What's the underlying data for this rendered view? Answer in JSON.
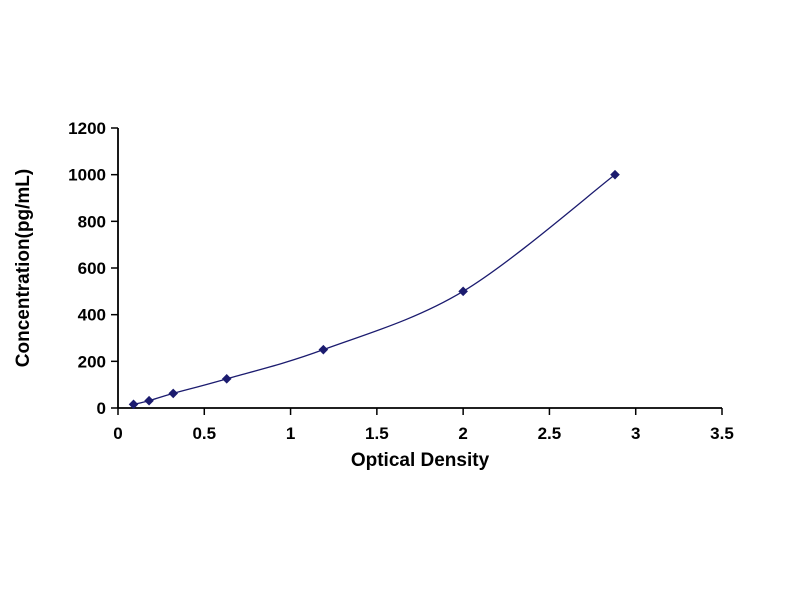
{
  "page": {
    "background": "#ffffff"
  },
  "chart_data": {
    "type": "line",
    "title": "",
    "xlabel": "Optical Density",
    "ylabel": "Concentration(pg/mL)",
    "x": [
      0.09,
      0.18,
      0.32,
      0.63,
      1.19,
      2.0,
      2.88
    ],
    "y": [
      15.6,
      31.2,
      62.5,
      125,
      250,
      500,
      1000
    ],
    "xlim": [
      0,
      3.5
    ],
    "ylim": [
      0,
      1200
    ],
    "xticks": {
      "values": [
        0,
        0.5,
        1,
        1.5,
        2,
        2.5,
        3,
        3.5
      ],
      "labels": [
        "0",
        "0.5",
        "1",
        "1.5",
        "2",
        "2.5",
        "3",
        "3.5"
      ]
    },
    "yticks": {
      "values": [
        0,
        200,
        400,
        600,
        800,
        1000,
        1200
      ],
      "labels": [
        "0",
        "200",
        "400",
        "600",
        "800",
        "1000",
        "1200"
      ]
    },
    "marker": "diamond",
    "grid": false,
    "legend_position": "none",
    "line_color": "#1b1b6f",
    "marker_color": "#1b1b6f",
    "axis_color": "#000000",
    "text_color": "#000000"
  }
}
